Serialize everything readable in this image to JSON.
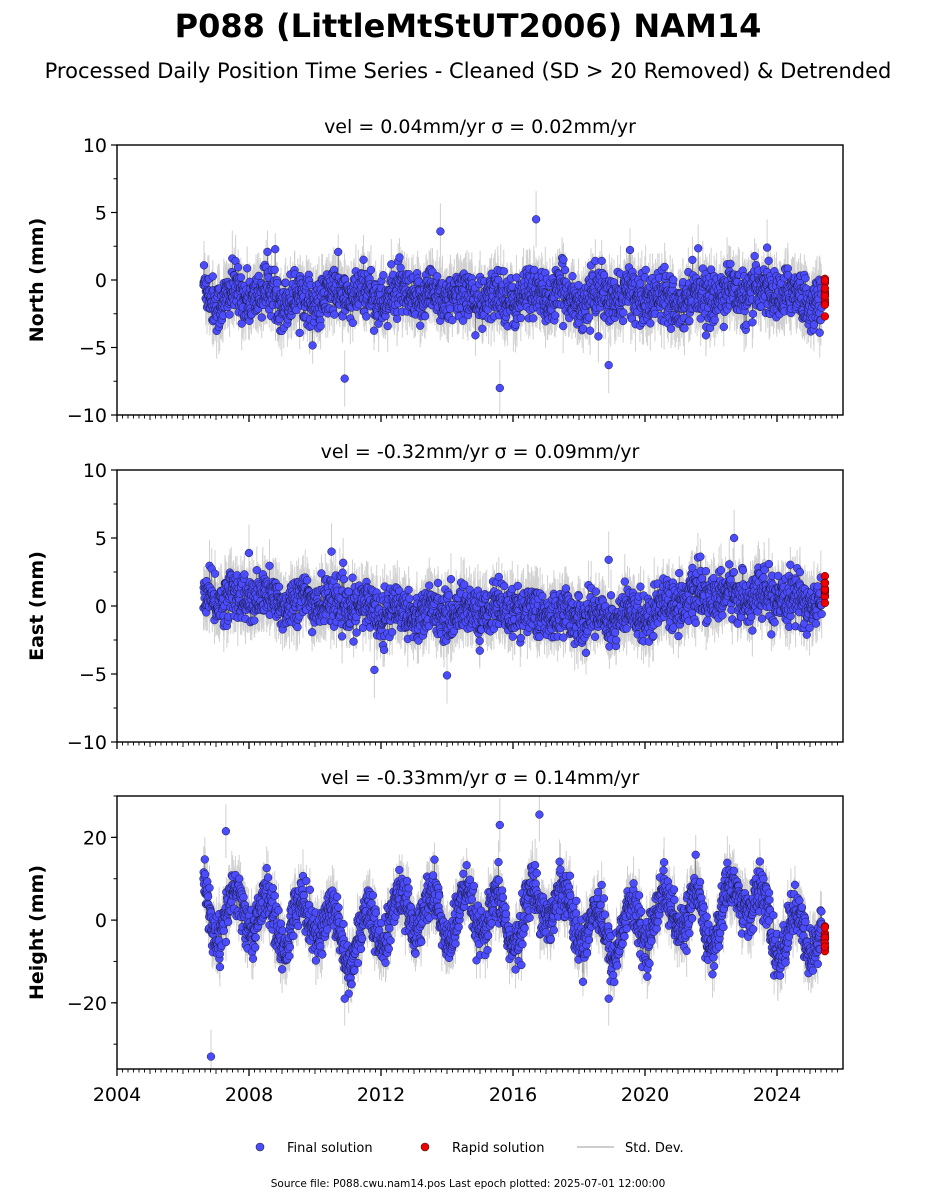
{
  "title": "P088 (LittleMtStUT2006) NAM14",
  "subtitle": "Processed Daily Position Time Series - Cleaned (SD > 20 Removed) & Detrended",
  "footer": "Source file: P088.cwu.nam14.pos  Last epoch plotted: 2025-07-01 12:00:00",
  "legend": {
    "final": "Final solution",
    "rapid": "Rapid solution",
    "std": "Std. Dev."
  },
  "colors": {
    "final": "#4b4bff",
    "rapid": "#ee0000",
    "std": "#bdbdbd"
  },
  "chart_data": [
    {
      "type": "scatter",
      "title": "vel = 0.04mm/yr   σ = 0.02mm/yr",
      "ylabel": "North (mm)",
      "xlim": [
        2004.0,
        2026.0
      ],
      "ylim": [
        -10,
        10
      ],
      "yticks": [
        "−10",
        "−5",
        "0",
        "5",
        "10"
      ],
      "yticks_values": [
        -10,
        -5,
        0,
        5,
        10
      ],
      "series": [
        {
          "name": "Final solution",
          "x": [
            2006.6,
            2007.0,
            2008.0,
            2009.0,
            2010.0,
            2011.0,
            2012.0,
            2013.0,
            2014.0,
            2015.0,
            2016.0,
            2017.0,
            2018.0,
            2019.0,
            2020.0,
            2021.0,
            2022.0,
            2023.0,
            2024.0,
            2025.0
          ],
          "y": [
            -0.5,
            -1.5,
            -1.0,
            -1.2,
            -1.5,
            -1.0,
            -1.3,
            -1.2,
            -1.1,
            -1.4,
            -1.3,
            -1.0,
            -1.4,
            -1.2,
            -1.2,
            -1.3,
            -1.1,
            -0.9,
            -0.8,
            -1.5
          ],
          "outliers": [
            [
              2013.8,
              3.6
            ],
            [
              2016.7,
              4.5
            ],
            [
              2015.6,
              -8.0
            ],
            [
              2010.9,
              -7.3
            ],
            [
              2018.9,
              -6.3
            ],
            [
              2023.7,
              2.4
            ]
          ]
        },
        {
          "name": "Rapid solution",
          "x": [
            2025.45
          ],
          "y": [
            -1.4
          ]
        }
      ]
    },
    {
      "type": "scatter",
      "title": "vel = -0.32mm/yr   σ = 0.09mm/yr",
      "ylabel": "East (mm)",
      "xlim": [
        2004.0,
        2026.0
      ],
      "ylim": [
        -10,
        10
      ],
      "yticks": [
        "−10",
        "−5",
        "0",
        "5",
        "10"
      ],
      "yticks_values": [
        -10,
        -5,
        0,
        5,
        10
      ],
      "series": [
        {
          "name": "Final solution",
          "x": [
            2006.6,
            2007.0,
            2008.0,
            2009.0,
            2010.0,
            2011.0,
            2012.0,
            2013.0,
            2014.0,
            2015.0,
            2016.0,
            2017.0,
            2018.0,
            2019.0,
            2020.0,
            2021.0,
            2022.0,
            2023.0,
            2024.0,
            2025.0
          ],
          "y": [
            0.5,
            0.6,
            0.7,
            0.3,
            0.4,
            0.0,
            -0.3,
            -0.5,
            -0.5,
            -0.3,
            -0.2,
            -0.6,
            -0.8,
            -0.8,
            -0.6,
            0.5,
            0.7,
            0.8,
            0.5,
            0.3
          ],
          "outliers": [
            [
              2022.7,
              5.0
            ],
            [
              2010.5,
              4.0
            ],
            [
              2014.0,
              -5.1
            ],
            [
              2011.8,
              -4.7
            ],
            [
              2008.0,
              3.9
            ],
            [
              2018.9,
              3.4
            ]
          ]
        },
        {
          "name": "Rapid solution",
          "x": [
            2025.45
          ],
          "y": [
            0.7
          ]
        }
      ]
    },
    {
      "type": "scatter",
      "title": "vel = -0.33mm/yr   σ = 0.14mm/yr",
      "ylabel": "Height (mm)",
      "xlabel": "",
      "xlim": [
        2004.0,
        2026.0
      ],
      "ylim": [
        -36,
        30
      ],
      "yticks": [
        "−20",
        "0",
        "20"
      ],
      "yticks_values": [
        -20,
        0,
        20
      ],
      "xticks": [
        "2004",
        "2008",
        "2012",
        "2016",
        "2020",
        "2024"
      ],
      "xticks_values": [
        2004,
        2008,
        2012,
        2016,
        2020,
        2024
      ],
      "series": [
        {
          "name": "Final solution",
          "x": [
            2006.6,
            2007.0,
            2008.0,
            2009.0,
            2010.0,
            2011.0,
            2012.0,
            2013.0,
            2014.0,
            2015.0,
            2016.0,
            2017.0,
            2018.0,
            2019.0,
            2020.0,
            2021.0,
            2022.0,
            2023.0,
            2024.0,
            2025.0
          ],
          "y": [
            5.0,
            0.0,
            3.0,
            -2.0,
            2.0,
            -6.0,
            -1.0,
            3.0,
            0.0,
            2.0,
            -2.0,
            6.0,
            0.0,
            -4.0,
            0.0,
            3.0,
            -2.0,
            8.0,
            -4.0,
            -3.0
          ],
          "outliers": [
            [
              2006.85,
              -33.0
            ],
            [
              2016.8,
              25.5
            ],
            [
              2015.6,
              23.0
            ],
            [
              2007.3,
              21.5
            ],
            [
              2018.9,
              -19.0
            ],
            [
              2010.9,
              -19.0
            ]
          ]
        },
        {
          "name": "Rapid solution",
          "x": [
            2025.45
          ],
          "y": [
            -5.0
          ]
        }
      ]
    }
  ]
}
